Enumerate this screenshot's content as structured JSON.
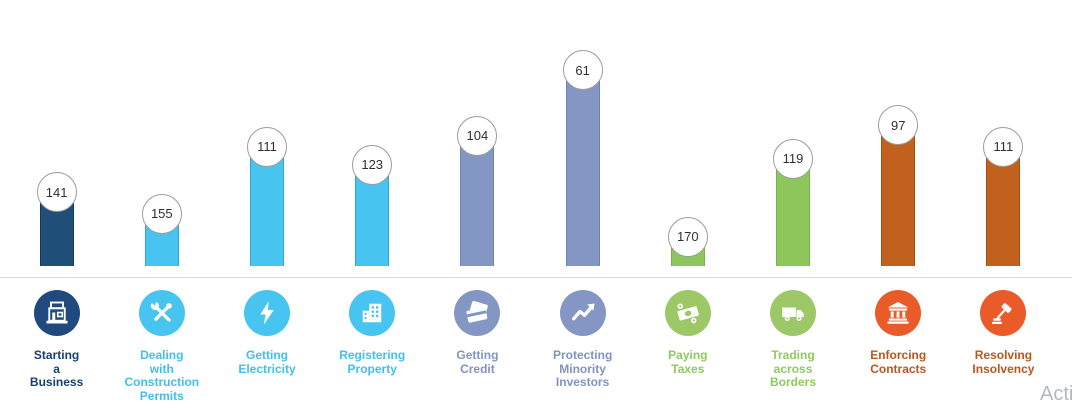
{
  "chart_data": {
    "type": "bar",
    "categories": [
      "Starting a Business",
      "Dealing with Construction Permits",
      "Getting Electricity",
      "Registering Property",
      "Getting Credit",
      "Protecting Minority Investors",
      "Paying Taxes",
      "Trading across Borders",
      "Enforcing Contracts",
      "Resolving Insolvency"
    ],
    "values": [
      141,
      155,
      111,
      123,
      104,
      61,
      170,
      119,
      97,
      111
    ],
    "value_axis": {
      "max_rank": 190,
      "min": 0,
      "inverted": true
    },
    "legend": "none",
    "grid": "off",
    "items": [
      {
        "label": "Starting\na\nBusiness",
        "icon": "storefront-icon",
        "bar_color": "#1F4E79",
        "bar_border": "#16375A",
        "icon_bg": "#20497E",
        "label_color": "#17406B"
      },
      {
        "label": "Dealing\nwith\nConstruction\nPermits",
        "icon": "tools-icon",
        "bar_color": "#47C4EF",
        "bar_border": "#2FA9D4",
        "icon_bg": "#47C4EF",
        "label_color": "#42BFEC"
      },
      {
        "label": "Getting\nElectricity",
        "icon": "lightning-bolt-icon",
        "bar_color": "#47C4EF",
        "bar_border": "#2FA9D4",
        "icon_bg": "#47C4EF",
        "label_color": "#42BFEC"
      },
      {
        "label": "Registering\nProperty",
        "icon": "building-icon",
        "bar_color": "#47C4EF",
        "bar_border": "#2FA9D4",
        "icon_bg": "#47C4EF",
        "label_color": "#42BFEC"
      },
      {
        "label": "Getting\nCredit",
        "icon": "credit-card-icon",
        "bar_color": "#8396C4",
        "bar_border": "#6F83B3",
        "icon_bg": "#8396C4",
        "label_color": "#8093C1"
      },
      {
        "label": "Protecting\nMinority\nInvestors",
        "icon": "trend-arrow-icon",
        "bar_color": "#8396C4",
        "bar_border": "#6F83B3",
        "icon_bg": "#8396C4",
        "label_color": "#8093C1"
      },
      {
        "label": "Paying\nTaxes",
        "icon": "money-icon",
        "bar_color": "#8DC75C",
        "bar_border": "#77B148",
        "icon_bg": "#9CC868",
        "label_color": "#8FC960"
      },
      {
        "label": "Trading\nacross\nBorders",
        "icon": "truck-icon",
        "bar_color": "#8DC75C",
        "bar_border": "#77B148",
        "icon_bg": "#9CC868",
        "label_color": "#8FC960"
      },
      {
        "label": "Enforcing\nContracts",
        "icon": "courthouse-icon",
        "bar_color": "#C2611E",
        "bar_border": "#A54F13",
        "icon_bg": "#EA5B2A",
        "label_color": "#BC551C"
      },
      {
        "label": "Resolving\nInsolvency",
        "icon": "gavel-icon",
        "bar_color": "#C2611E",
        "bar_border": "#A54F13",
        "icon_bg": "#EA5B2A",
        "label_color": "#BC551C"
      }
    ],
    "badge_style": {
      "fill": "#FFFFFF",
      "border": "#9C9C9C",
      "text_color": "#303030"
    }
  },
  "watermark": "Acti"
}
